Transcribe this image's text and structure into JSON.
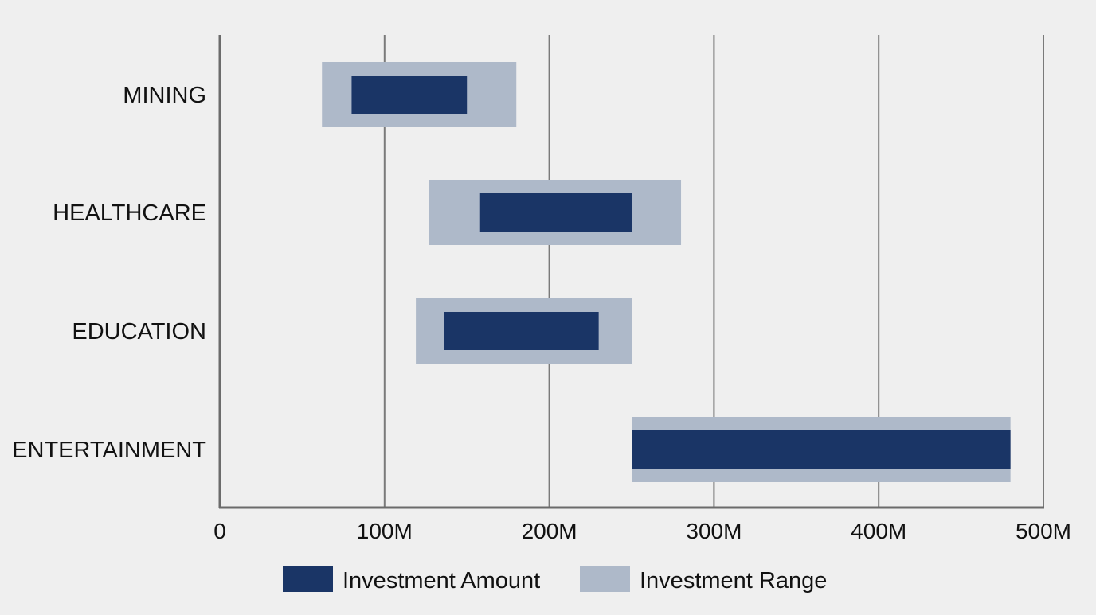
{
  "chart_data": {
    "type": "bar",
    "orientation": "horizontal",
    "categories": [
      "MINING",
      "HEALTHCARE",
      "EDUCATION",
      "ENTERTAINMENT"
    ],
    "series": [
      {
        "name": "Investment Range",
        "color": "#aeb9c9",
        "ranges": [
          [
            62,
            180
          ],
          [
            127,
            280
          ],
          [
            119,
            250
          ],
          [
            250,
            480
          ]
        ]
      },
      {
        "name": "Investment Amount",
        "color": "#1a3566",
        "ranges": [
          [
            80,
            150
          ],
          [
            158,
            250
          ],
          [
            136,
            230
          ],
          [
            250,
            480
          ]
        ]
      }
    ],
    "xlim": [
      0,
      500
    ],
    "x_unit": "M",
    "x_ticks": [
      0,
      100,
      200,
      300,
      400,
      500
    ],
    "x_tick_labels": [
      "0",
      "100M",
      "200M",
      "300M",
      "400M",
      "500M"
    ],
    "grid": "vertical",
    "legend_position": "bottom-center",
    "title": "",
    "xlabel": "",
    "ylabel": ""
  },
  "legend": {
    "items": [
      {
        "label": "Investment Amount",
        "color": "#1a3566"
      },
      {
        "label": "Investment Range",
        "color": "#aeb9c9"
      }
    ]
  },
  "colors": {
    "background": "#efefef",
    "axis": "#6b6b6b",
    "grid": "#7a7a7a"
  }
}
